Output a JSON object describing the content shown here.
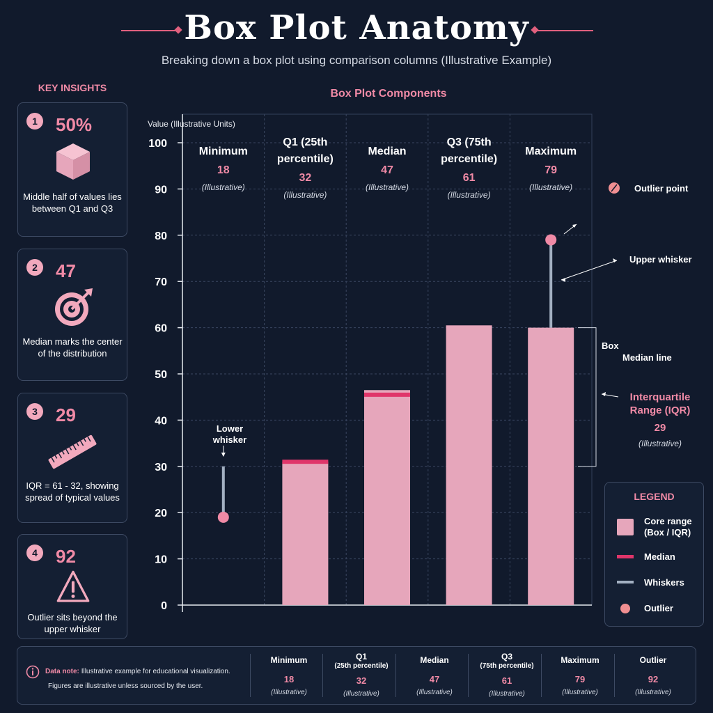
{
  "header": {
    "title": "Box Plot Anatomy",
    "subtitle": "Breaking down a box plot using comparison columns (Illustrative Example)"
  },
  "sidebar": {
    "heading": "KEY INSIGHTS",
    "cards": [
      {
        "num": "1",
        "value": "50%",
        "text": "Middle half of values lies between Q1 and Q3",
        "icon": "cube-icon"
      },
      {
        "num": "2",
        "value": "47",
        "text": "Median marks the center of the distribution",
        "icon": "target-icon"
      },
      {
        "num": "3",
        "value": "29",
        "text": "IQR = 61 - 32, showing spread of typical values",
        "icon": "ruler-icon"
      },
      {
        "num": "4",
        "value": "92",
        "text": "Outlier sits beyond the upper whisker",
        "icon": "warning-icon"
      }
    ]
  },
  "chart_data": {
    "type": "bar",
    "title": "Box Plot Components",
    "ylabel": "Value (Illustrative Units)",
    "ylim": [
      0,
      100
    ],
    "yticks": [
      0,
      10,
      20,
      30,
      40,
      50,
      60,
      70,
      80,
      90,
      100
    ],
    "grid": true,
    "columns": [
      {
        "name": "Minimum",
        "value": 18,
        "note": "(Illustrative)"
      },
      {
        "name": "Q1 (25th percentile)",
        "value": 32,
        "note": "(Illustrative)"
      },
      {
        "name": "Median",
        "value": 47,
        "note": "(Illustrative)"
      },
      {
        "name": "Q3 (75th percentile)",
        "value": 61,
        "note": "(Illustrative)"
      },
      {
        "name": "Maximum",
        "value": 79,
        "note": "(Illustrative)"
      }
    ],
    "bars": [
      {
        "column": "Q1 (25th percentile)",
        "top": 31,
        "band": 31
      },
      {
        "column": "Median",
        "top": 46.5,
        "band": 45.5
      },
      {
        "column": "Q3 (75th percentile)",
        "top": 60.5
      },
      {
        "column": "Maximum",
        "top": 60
      }
    ],
    "lower_whisker": {
      "from": 19,
      "to": 30
    },
    "upper_whisker": {
      "from": 60,
      "to": 79
    },
    "annotations": {
      "outlier_point": "Outlier point",
      "upper_whisker": "Upper whisker",
      "lower_whisker": "Lower whisker",
      "box": "Box",
      "median_line": "Median line",
      "iqr_label": "Interquartile Range (IQR)",
      "iqr_value": "29",
      "iqr_note": "(Illustrative)"
    },
    "legend": {
      "title": "LEGEND",
      "placement": "bottom-right",
      "items": [
        {
          "label": "Core range (Box / IQR)",
          "color": "#e6a6bb"
        },
        {
          "label": "Median",
          "color": "#e0356a"
        },
        {
          "label": "Whiskers",
          "color": "#a3b0c2"
        },
        {
          "label": "Outlier",
          "color": "#f08f92"
        }
      ]
    }
  },
  "footer": {
    "note_label": "Data note:",
    "note_text": "Illustrative example for educational visualization.",
    "note_text2": "Figures are illustrative unless sourced by the user.",
    "columns": [
      {
        "name": "Minimum",
        "sub": "",
        "value": "18",
        "note": "(Illustrative)"
      },
      {
        "name": "Q1",
        "sub": "(25th percentile)",
        "value": "32",
        "note": "(Illustrative)"
      },
      {
        "name": "Median",
        "sub": "",
        "value": "47",
        "note": "(Illustrative)"
      },
      {
        "name": "Q3",
        "sub": "(75th percentile)",
        "value": "61",
        "note": "(Illustrative)"
      },
      {
        "name": "Maximum",
        "sub": "",
        "value": "79",
        "note": "(Illustrative)"
      },
      {
        "name": "Outlier",
        "sub": "",
        "value": "92",
        "note": "(Illustrative)"
      }
    ]
  },
  "colors": {
    "background": "#111a2c",
    "accent": "#f08aa6",
    "box": "#e6a6bb",
    "median": "#e0356a",
    "whisker": "#a3b0c2",
    "outlier": "#f08f92"
  }
}
